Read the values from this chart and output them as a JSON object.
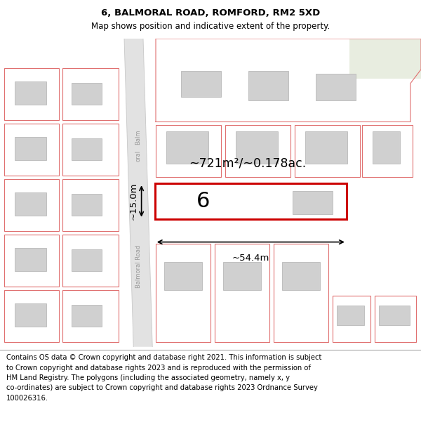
{
  "title": "6, BALMORAL ROAD, ROMFORD, RM2 5XD",
  "subtitle": "Map shows position and indicative extent of the property.",
  "footer_line1": "Contains OS data © Crown copyright and database right 2021. This information is subject",
  "footer_line2": "to Crown copyright and database rights 2023 and is reproduced with the permission of",
  "footer_line3": "HM Land Registry. The polygons (including the associated geometry, namely x, y",
  "footer_line4": "co-ordinates) are subject to Crown copyright and database rights 2023 Ordnance Survey",
  "footer_line5": "100026316.",
  "map_bg": "#f5f3f0",
  "road_fill": "#e2e2e2",
  "plot_ec": "#e07070",
  "highlight_ec": "#cc0000",
  "building_fc": "#d0d0d0",
  "building_ec": "#b0b0b0",
  "greenish": "#e8ede0",
  "road_label": "Balmoral Road",
  "area_label": "~721m²/~0.178ac.",
  "width_label": "~54.4m",
  "height_label": "~15.0m",
  "house_number": "6",
  "title_fontsize": 9.5,
  "subtitle_fontsize": 8.5,
  "footer_fontsize": 7.2
}
